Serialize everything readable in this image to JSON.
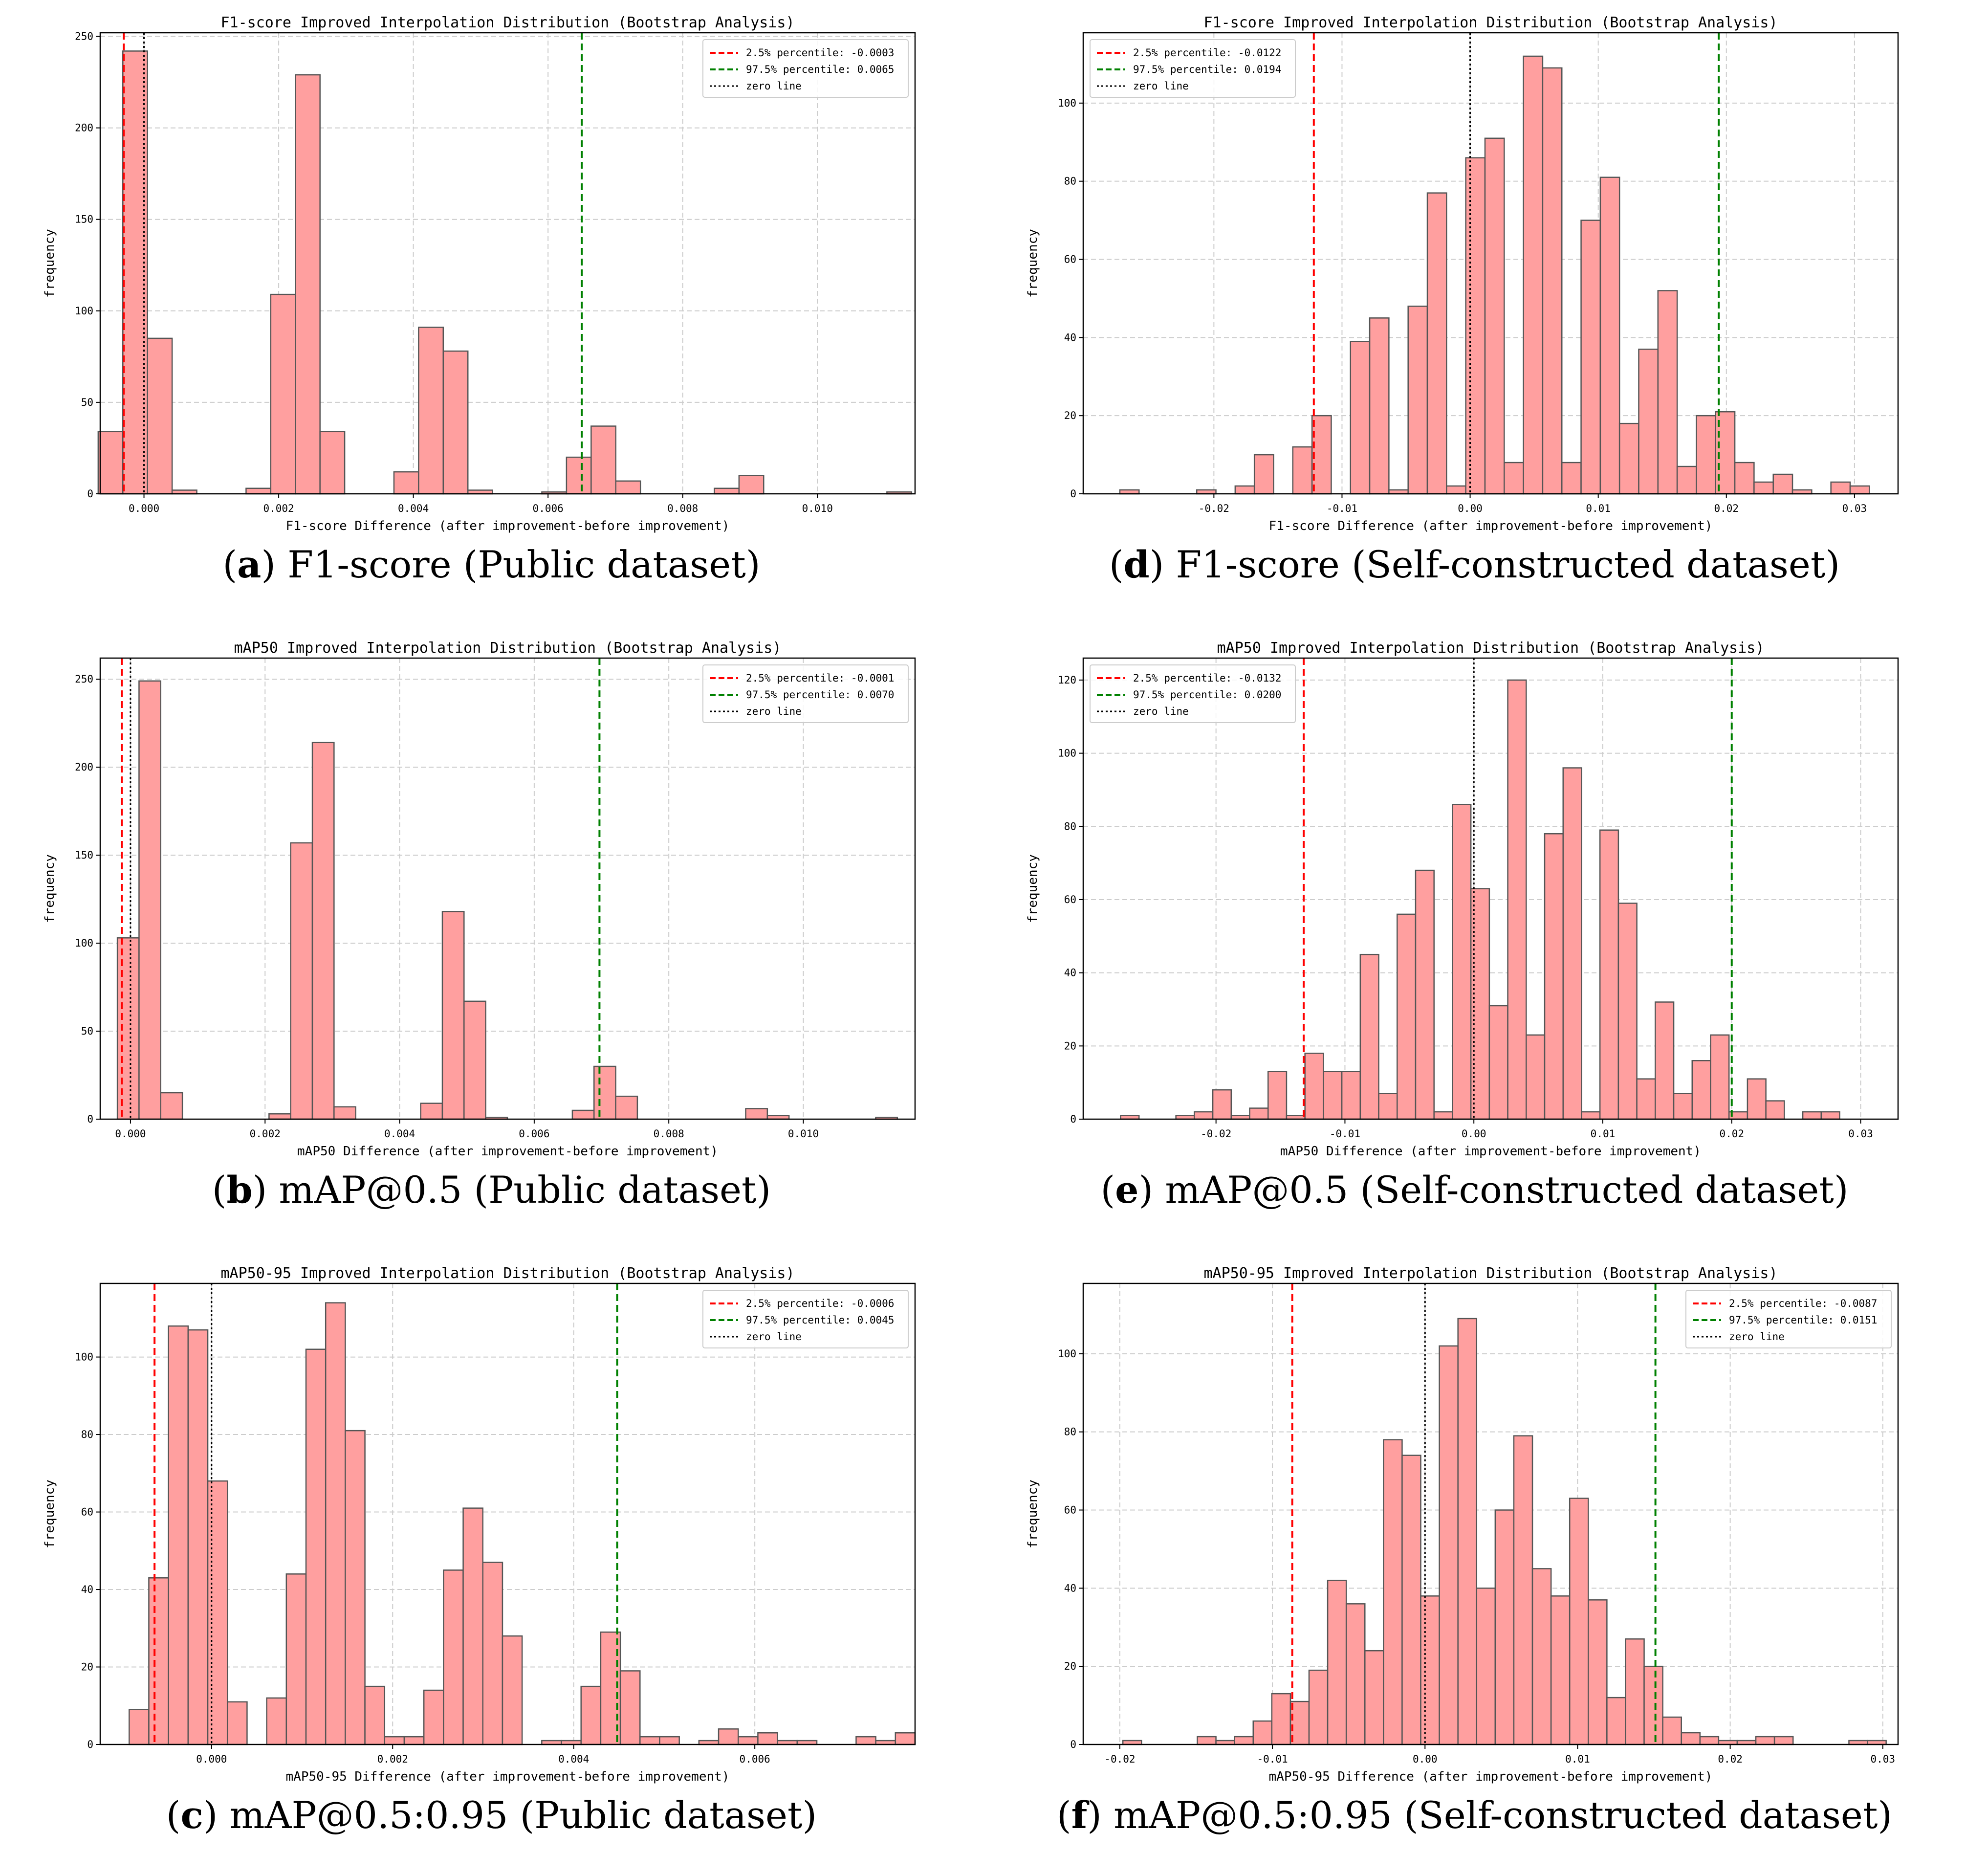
{
  "colors": {
    "bar_fill": "#ff9f9f",
    "bar_edge": "#555555",
    "p_low": "#ff0000",
    "p_high": "#008000",
    "zero": "#000000",
    "grid": "#cccccc"
  },
  "chart_data": [
    {
      "id": "a",
      "type": "bar",
      "caption_letter": "a",
      "caption_text": " F1-score (Public dataset)",
      "title": "F1-score Improved Interpolation Distribution (Bootstrap Analysis)",
      "xlabel": "F1-score Difference (after improvement-before improvement)",
      "ylabel": "frequency",
      "xlim": [
        -0.00065,
        0.01145
      ],
      "ylim": [
        0,
        252
      ],
      "xticks": [
        0.0,
        0.002,
        0.004,
        0.006,
        0.008,
        0.01
      ],
      "xtick_labels": [
        "0.000",
        "0.002",
        "0.004",
        "0.006",
        "0.008",
        "0.010"
      ],
      "yticks": [
        0,
        50,
        100,
        150,
        200,
        250
      ],
      "bin_start": -0.00068,
      "bin_width": 0.000366,
      "values": [
        34,
        242,
        85,
        2,
        0,
        0,
        3,
        109,
        229,
        34,
        0,
        0,
        12,
        91,
        78,
        2,
        0,
        0,
        1,
        20,
        37,
        7,
        0,
        0,
        0,
        3,
        10,
        0,
        0,
        0,
        0,
        0,
        1
      ],
      "legend_position": "top-right",
      "legend": [
        "2.5% percentile: -0.0003",
        "97.5% percentile: 0.0065",
        "zero line"
      ],
      "p_low": -0.0003,
      "p_high": 0.0065,
      "zero": 0.0
    },
    {
      "id": "d",
      "type": "bar",
      "caption_letter": "d",
      "caption_text": " F1-score (Self-constructed dataset)",
      "title": "F1-score Improved Interpolation Distribution (Bootstrap Analysis)",
      "xlabel": "F1-score Difference (after improvement-before improvement)",
      "ylabel": "frequency",
      "xlim": [
        -0.0302,
        0.0334
      ],
      "ylim": [
        0,
        118
      ],
      "xticks": [
        -0.02,
        -0.01,
        0.0,
        0.01,
        0.02,
        0.03
      ],
      "xtick_labels": [
        "-0.02",
        "-0.01",
        "0.00",
        "0.01",
        "0.02",
        "0.03"
      ],
      "yticks": [
        0,
        20,
        40,
        60,
        80,
        100
      ],
      "bin_start": -0.02734,
      "bin_width": 0.0015,
      "values": [
        1,
        0,
        0,
        0,
        1,
        0,
        2,
        10,
        0,
        12,
        20,
        0,
        39,
        45,
        1,
        48,
        77,
        2,
        86,
        91,
        8,
        112,
        109,
        8,
        70,
        81,
        18,
        37,
        52,
        7,
        20,
        21,
        8,
        3,
        5,
        1,
        0,
        3,
        2
      ],
      "legend_position": "top-left",
      "legend": [
        "2.5% percentile: -0.0122",
        "97.5% percentile: 0.0194",
        "zero line"
      ],
      "p_low": -0.0122,
      "p_high": 0.0194,
      "zero": 0.0
    },
    {
      "id": "b",
      "type": "bar",
      "caption_letter": "b",
      "caption_text": " mAP@0.5 (Public dataset)",
      "title": "mAP50 Improved Interpolation Distribution (Bootstrap Analysis)",
      "xlabel": "mAP50 Difference (after improvement-before improvement)",
      "ylabel": "frequency",
      "xlim": [
        -0.00045,
        0.01166
      ],
      "ylim": [
        0,
        262
      ],
      "xticks": [
        0.0,
        0.002,
        0.004,
        0.006,
        0.008,
        0.01
      ],
      "xtick_labels": [
        "0.000",
        "0.002",
        "0.004",
        "0.006",
        "0.008",
        "0.010"
      ],
      "yticks": [
        0,
        50,
        100,
        150,
        200,
        250
      ],
      "bin_start": -0.000195,
      "bin_width": 0.000322,
      "values": [
        103,
        249,
        15,
        0,
        0,
        0,
        0,
        3,
        157,
        214,
        7,
        0,
        0,
        0,
        9,
        118,
        67,
        1,
        0,
        0,
        0,
        5,
        30,
        13,
        0,
        0,
        0,
        0,
        0,
        6,
        2,
        0,
        0,
        0,
        0,
        1
      ],
      "legend_position": "top-right",
      "legend": [
        "2.5% percentile: -0.0001",
        "97.5% percentile: 0.0070",
        "zero line"
      ],
      "p_low": -0.00013,
      "p_high": 0.00697,
      "zero": 0.0
    },
    {
      "id": "e",
      "type": "bar",
      "caption_letter": "e",
      "caption_text": " mAP@0.5 (Self-constructed dataset)",
      "title": "mAP50 Improved Interpolation Distribution (Bootstrap Analysis)",
      "xlabel": "mAP50 Difference (after improvement-before improvement)",
      "ylabel": "frequency",
      "xlim": [
        -0.0303,
        0.0329
      ],
      "ylim": [
        0,
        126
      ],
      "xticks": [
        -0.02,
        -0.01,
        0.0,
        0.01,
        0.02,
        0.03
      ],
      "xtick_labels": [
        "-0.02",
        "-0.01",
        "0.00",
        "0.01",
        "0.02",
        "0.03"
      ],
      "yticks": [
        0,
        20,
        40,
        60,
        80,
        100,
        120
      ],
      "bin_start": -0.0274,
      "bin_width": 0.00143,
      "values": [
        1,
        0,
        0,
        1,
        2,
        8,
        1,
        3,
        13,
        1,
        18,
        13,
        13,
        45,
        7,
        56,
        68,
        2,
        86,
        63,
        31,
        120,
        23,
        78,
        96,
        2,
        79,
        59,
        11,
        32,
        7,
        16,
        23,
        2,
        11,
        5,
        0,
        2,
        2
      ],
      "legend_position": "top-left",
      "legend": [
        "2.5% percentile: -0.0132",
        "97.5% percentile: 0.0200",
        "zero line"
      ],
      "p_low": -0.0132,
      "p_high": 0.02,
      "zero": 0.0
    },
    {
      "id": "c",
      "type": "bar",
      "caption_letter": "c",
      "caption_text": " mAP@0.5:0.95 (Public dataset)",
      "title": "mAP50-95 Improved Interpolation Distribution (Bootstrap Analysis)",
      "xlabel": "mAP50-95 Difference (after improvement-before improvement)",
      "ylabel": "frequency",
      "xlim": [
        -0.00123,
        0.00777
      ],
      "ylim": [
        0,
        119
      ],
      "xticks": [
        0.0,
        0.002,
        0.004,
        0.006
      ],
      "xtick_labels": [
        "0.000",
        "0.002",
        "0.004",
        "0.006"
      ],
      "yticks": [
        0,
        20,
        40,
        60,
        80,
        100
      ],
      "bin_start": -0.00091,
      "bin_width": 0.000217,
      "values": [
        9,
        43,
        108,
        107,
        68,
        11,
        0,
        12,
        44,
        102,
        114,
        81,
        15,
        2,
        2,
        14,
        45,
        61,
        47,
        28,
        0,
        1,
        1,
        15,
        29,
        19,
        2,
        2,
        0,
        1,
        4,
        2,
        3,
        1,
        1,
        0,
        0,
        2,
        1,
        3
      ],
      "legend_position": "top-right",
      "legend": [
        "2.5% percentile: -0.0006",
        "97.5% percentile: 0.0045",
        "zero line"
      ],
      "p_low": -0.00063,
      "p_high": 0.00448,
      "zero": 0.0
    },
    {
      "id": "f",
      "type": "bar",
      "caption_letter": "f",
      "caption_text": " mAP@0.5:0.95 (Self-constructed dataset)",
      "title": "mAP50-95 Improved Interpolation Distribution (Bootstrap Analysis)",
      "xlabel": "mAP50-95 Difference (after improvement-before improvement)",
      "ylabel": "frequency",
      "xlim": [
        -0.0224,
        0.031
      ],
      "ylim": [
        0,
        118
      ],
      "xticks": [
        -0.02,
        -0.01,
        0.0,
        0.01,
        0.02,
        0.03
      ],
      "xtick_labels": [
        "-0.02",
        "-0.01",
        "0.00",
        "0.01",
        "0.02",
        "0.03"
      ],
      "yticks": [
        0,
        20,
        40,
        60,
        80,
        100
      ],
      "bin_start": -0.0198,
      "bin_width": 0.00122,
      "values": [
        1,
        0,
        0,
        0,
        2,
        1,
        2,
        6,
        13,
        11,
        19,
        42,
        36,
        24,
        78,
        74,
        38,
        102,
        109,
        40,
        60,
        79,
        45,
        38,
        63,
        37,
        12,
        27,
        20,
        7,
        3,
        2,
        1,
        1,
        2,
        2,
        0,
        0,
        0,
        1,
        1
      ],
      "legend_position": "top-right",
      "legend": [
        "2.5% percentile: -0.0087",
        "97.5% percentile: 0.0151",
        "zero line"
      ],
      "p_low": -0.0087,
      "p_high": 0.0151,
      "zero": 0.0
    }
  ]
}
